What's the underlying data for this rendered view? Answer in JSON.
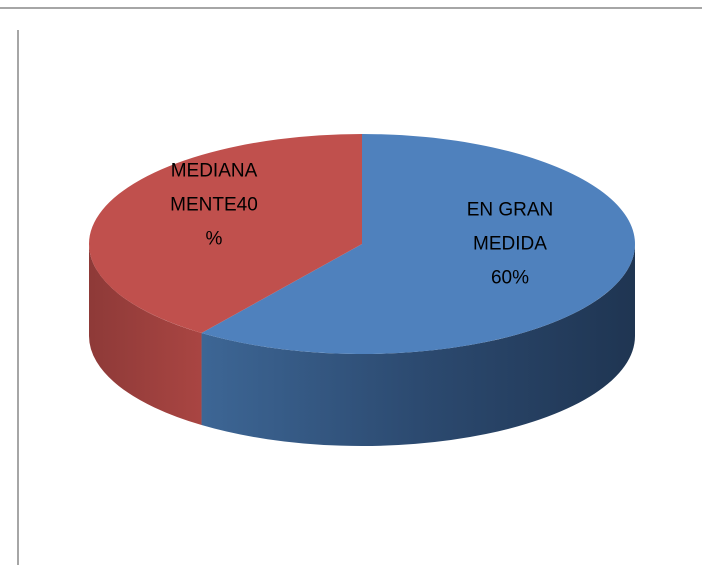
{
  "chart_data": {
    "type": "pie",
    "values": [
      60,
      40
    ],
    "value_labels": [
      "EN GRAN MEDIDA 60%",
      "MEDIANA MENTE40 %"
    ],
    "colors": [
      "#4f81bd",
      "#c0504d"
    ]
  }
}
